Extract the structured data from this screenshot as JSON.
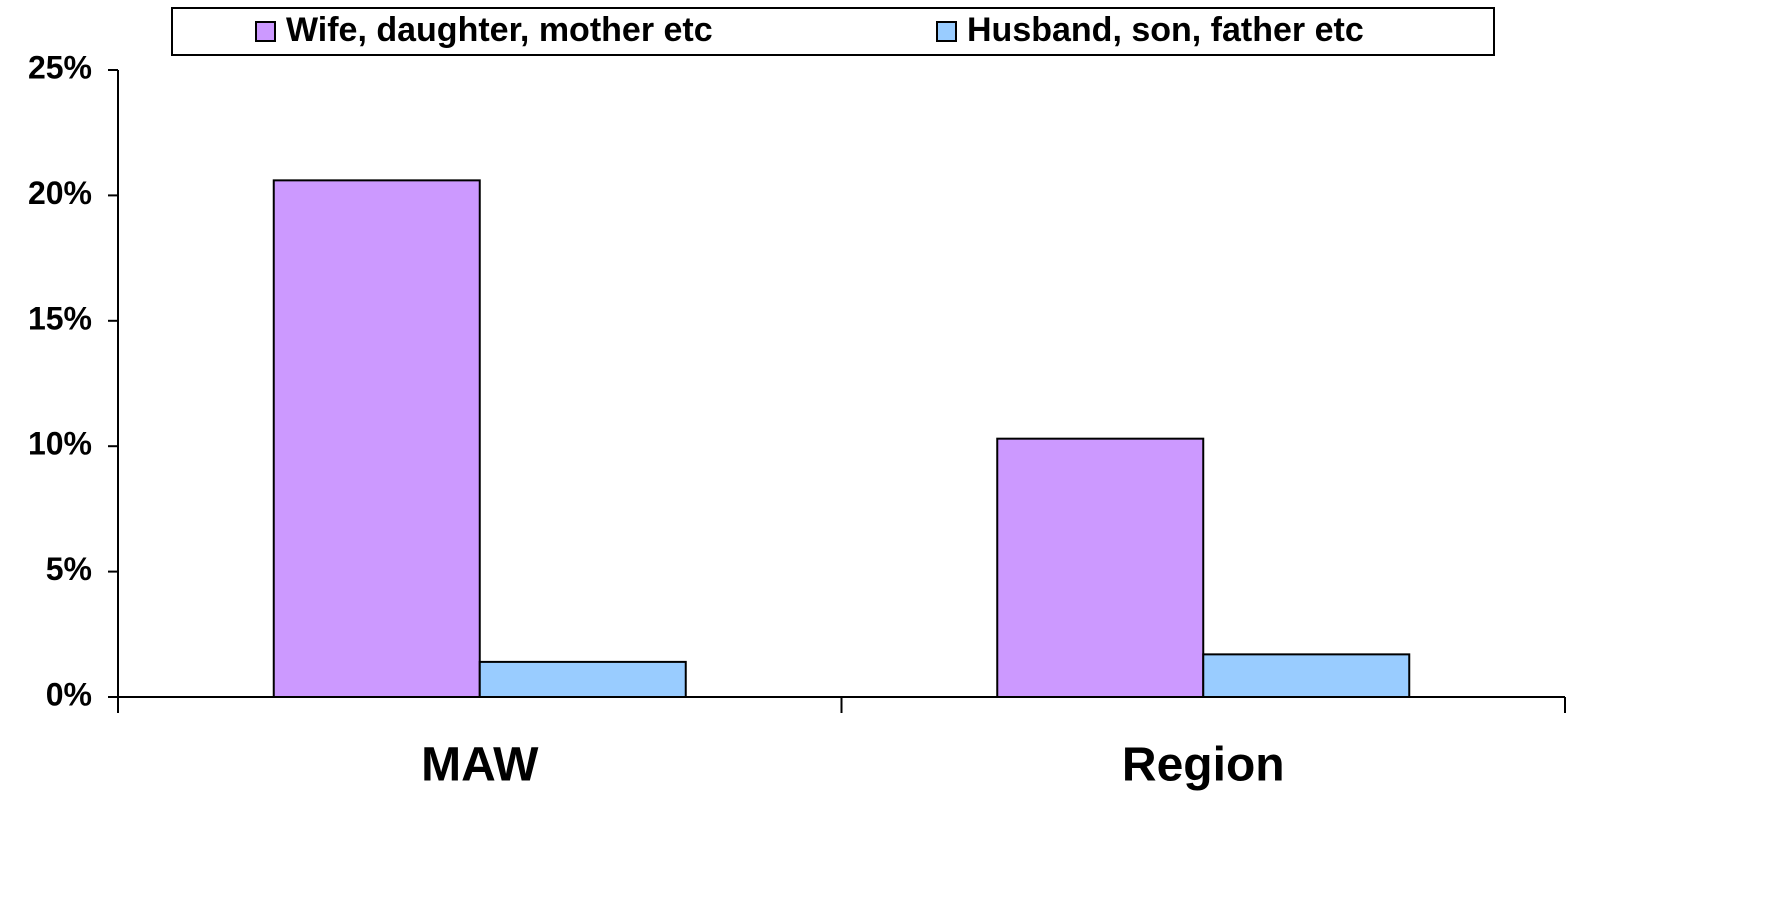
{
  "chart_data": {
    "type": "bar",
    "categories": [
      "MAW",
      "Region"
    ],
    "series": [
      {
        "name": "Wife, daughter, mother etc",
        "color": "#cc99ff",
        "values": [
          20.6,
          10.3
        ]
      },
      {
        "name": "Husband, son, father etc",
        "color": "#99ccff",
        "values": [
          1.4,
          1.7
        ]
      }
    ],
    "ylim": [
      0,
      25
    ],
    "yticks": [
      {
        "value": 0,
        "label": "0%"
      },
      {
        "value": 5,
        "label": "5%"
      },
      {
        "value": 10,
        "label": "10%"
      },
      {
        "value": 15,
        "label": "15%"
      },
      {
        "value": 20,
        "label": "20%"
      },
      {
        "value": 25,
        "label": "25%"
      }
    ],
    "legend": "top"
  }
}
